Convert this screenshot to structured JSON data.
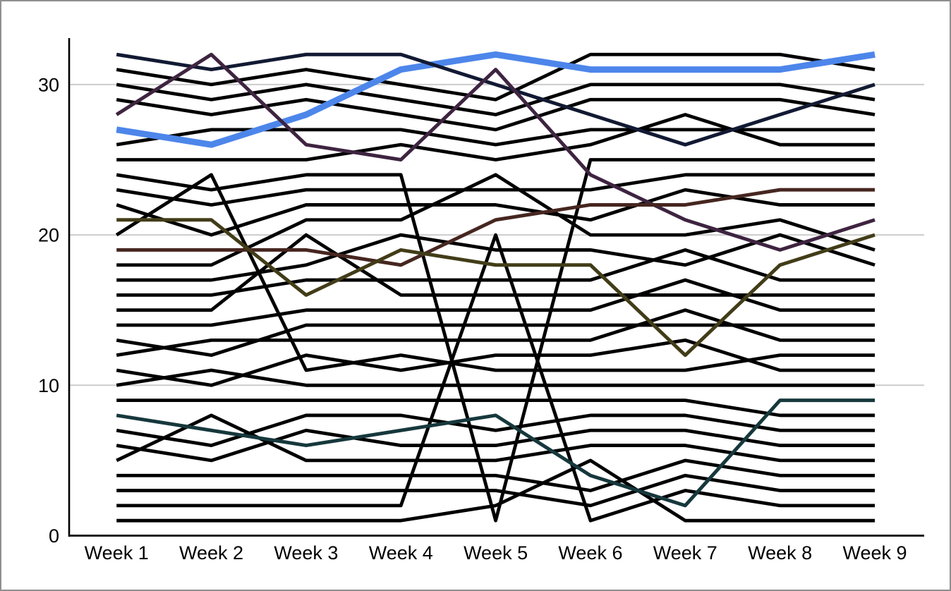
{
  "chart_data": {
    "type": "line",
    "title": "",
    "xlabel": "",
    "ylabel": "",
    "x_categories": [
      "Week 1",
      "Week 2",
      "Week 3",
      "Week 4",
      "Week 5",
      "Week 6",
      "Week 7",
      "Week 8",
      "Week 9"
    ],
    "y_ticks": [
      0,
      10,
      20,
      30
    ],
    "ylim": [
      0,
      33
    ],
    "grid": "horizontal",
    "legend": "none",
    "colors": {
      "background": "#ffffff",
      "axis": "#000000",
      "gridline": "#cccccc",
      "tick_text": "#000000",
      "black": "#000000",
      "highlight": "#4d86ea",
      "navy": "#121a33",
      "plum": "#3e2440",
      "maroon": "#462620",
      "olive": "#423c18",
      "teal": "#16383c"
    },
    "series": [
      {
        "name": "black-01",
        "color": "black",
        "width": 4.8,
        "highlighted": false,
        "values": [
          31,
          30,
          31,
          30,
          29,
          32,
          32,
          32,
          31
        ]
      },
      {
        "name": "black-02",
        "color": "black",
        "width": 4.8,
        "highlighted": false,
        "values": [
          30,
          29,
          30,
          29,
          28,
          30,
          30,
          30,
          29
        ]
      },
      {
        "name": "black-03",
        "color": "black",
        "width": 4.8,
        "highlighted": false,
        "values": [
          29,
          28,
          29,
          28,
          27,
          29,
          29,
          29,
          28
        ]
      },
      {
        "name": "black-04",
        "color": "black",
        "width": 4.8,
        "highlighted": false,
        "values": [
          26,
          27,
          27,
          27,
          26,
          27,
          27,
          27,
          27
        ]
      },
      {
        "name": "black-05",
        "color": "black",
        "width": 4.8,
        "highlighted": false,
        "values": [
          25,
          25,
          25,
          26,
          25,
          26,
          28,
          26,
          26
        ]
      },
      {
        "name": "black-06",
        "color": "black",
        "width": 4.8,
        "highlighted": false,
        "values": [
          24,
          23,
          24,
          24,
          1,
          25,
          25,
          25,
          25
        ]
      },
      {
        "name": "black-07",
        "color": "black",
        "width": 4.8,
        "highlighted": false,
        "values": [
          23,
          22,
          23,
          23,
          23,
          23,
          24,
          24,
          24
        ]
      },
      {
        "name": "black-08",
        "color": "black",
        "width": 4.8,
        "highlighted": false,
        "values": [
          22,
          20,
          22,
          22,
          22,
          21,
          23,
          22,
          22
        ]
      },
      {
        "name": "black-09",
        "color": "black",
        "width": 4.8,
        "highlighted": false,
        "values": [
          20,
          24,
          11,
          12,
          11,
          11,
          11,
          12,
          12
        ]
      },
      {
        "name": "black-10",
        "color": "black",
        "width": 4.8,
        "highlighted": false,
        "values": [
          18,
          18,
          21,
          21,
          24,
          20,
          20,
          21,
          19
        ]
      },
      {
        "name": "black-11",
        "color": "black",
        "width": 4.8,
        "highlighted": false,
        "values": [
          17,
          17,
          18,
          20,
          19,
          19,
          18,
          20,
          18
        ]
      },
      {
        "name": "black-12",
        "color": "black",
        "width": 4.8,
        "highlighted": false,
        "values": [
          16,
          16,
          17,
          17,
          17,
          17,
          19,
          17,
          17
        ]
      },
      {
        "name": "black-13",
        "color": "black",
        "width": 4.8,
        "highlighted": false,
        "values": [
          15,
          15,
          20,
          16,
          16,
          16,
          16,
          16,
          16
        ]
      },
      {
        "name": "black-14",
        "color": "black",
        "width": 4.8,
        "highlighted": false,
        "values": [
          14,
          14,
          15,
          15,
          15,
          15,
          17,
          15,
          15
        ]
      },
      {
        "name": "black-15",
        "color": "black",
        "width": 4.8,
        "highlighted": false,
        "values": [
          13,
          12,
          14,
          14,
          14,
          14,
          14,
          14,
          14
        ]
      },
      {
        "name": "black-16",
        "color": "black",
        "width": 4.8,
        "highlighted": false,
        "values": [
          12,
          13,
          13,
          13,
          13,
          13,
          15,
          13,
          13
        ]
      },
      {
        "name": "black-17",
        "color": "black",
        "width": 4.8,
        "highlighted": false,
        "values": [
          11,
          10,
          12,
          11,
          12,
          12,
          13,
          11,
          11
        ]
      },
      {
        "name": "black-18",
        "color": "black",
        "width": 4.8,
        "highlighted": false,
        "values": [
          10,
          11,
          10,
          10,
          10,
          10,
          10,
          10,
          10
        ]
      },
      {
        "name": "black-19",
        "color": "black",
        "width": 4.8,
        "highlighted": false,
        "values": [
          9,
          9,
          9,
          9,
          9,
          9,
          9,
          8,
          8
        ]
      },
      {
        "name": "black-20",
        "color": "black",
        "width": 4.8,
        "highlighted": false,
        "values": [
          7,
          6,
          8,
          8,
          7,
          8,
          8,
          7,
          7
        ]
      },
      {
        "name": "black-21",
        "color": "black",
        "width": 4.8,
        "highlighted": false,
        "values": [
          6,
          5,
          7,
          6,
          6,
          7,
          7,
          6,
          6
        ]
      },
      {
        "name": "black-22",
        "color": "black",
        "width": 4.8,
        "highlighted": false,
        "values": [
          5,
          8,
          5,
          5,
          5,
          6,
          6,
          5,
          5
        ]
      },
      {
        "name": "black-23",
        "color": "black",
        "width": 4.8,
        "highlighted": false,
        "values": [
          4,
          4,
          4,
          4,
          4,
          3,
          5,
          4,
          4
        ]
      },
      {
        "name": "black-24",
        "color": "black",
        "width": 4.8,
        "highlighted": false,
        "values": [
          3,
          3,
          3,
          3,
          3,
          2,
          4,
          3,
          3
        ]
      },
      {
        "name": "black-25",
        "color": "black",
        "width": 4.8,
        "highlighted": false,
        "values": [
          2,
          2,
          2,
          2,
          20,
          1,
          3,
          2,
          2
        ]
      },
      {
        "name": "black-26",
        "color": "black",
        "width": 4.8,
        "highlighted": false,
        "values": [
          1,
          1,
          1,
          1,
          2,
          5,
          1,
          1,
          1
        ]
      },
      {
        "name": "highlighted-blue",
        "color": "highlight",
        "width": 9,
        "highlighted": true,
        "values": [
          27,
          26,
          28,
          31,
          32,
          31,
          31,
          31,
          32
        ]
      },
      {
        "name": "navy",
        "color": "navy",
        "width": 5,
        "highlighted": false,
        "values": [
          32,
          31,
          32,
          32,
          30,
          28,
          26,
          28,
          30
        ]
      },
      {
        "name": "plum",
        "color": "plum",
        "width": 5,
        "highlighted": false,
        "values": [
          28,
          32,
          26,
          25,
          31,
          24,
          21,
          19,
          21
        ]
      },
      {
        "name": "maroon",
        "color": "maroon",
        "width": 5,
        "highlighted": false,
        "values": [
          19,
          19,
          19,
          18,
          21,
          22,
          22,
          23,
          23
        ]
      },
      {
        "name": "olive",
        "color": "olive",
        "width": 5,
        "highlighted": false,
        "values": [
          21,
          21,
          16,
          19,
          18,
          18,
          12,
          18,
          20
        ]
      },
      {
        "name": "teal",
        "color": "teal",
        "width": 5,
        "highlighted": false,
        "values": [
          8,
          7,
          6,
          7,
          8,
          4,
          2,
          9,
          9
        ]
      }
    ]
  }
}
